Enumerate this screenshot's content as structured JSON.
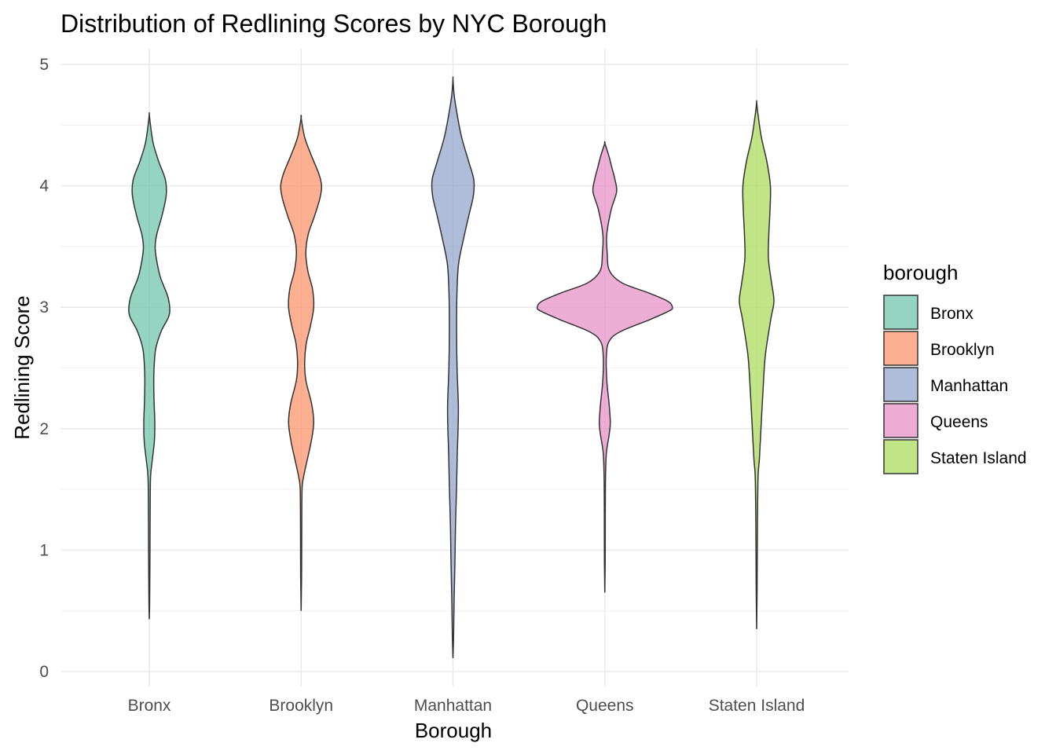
{
  "chart_data": {
    "type": "violin",
    "title": "Distribution of Redlining Scores by NYC Borough",
    "xlabel": "Borough",
    "ylabel": "Redlining Score",
    "ylim": [
      0,
      5
    ],
    "yticks": [
      0,
      1,
      2,
      3,
      4,
      5
    ],
    "grid": true,
    "categories": [
      "Bronx",
      "Brooklyn",
      "Manhattan",
      "Queens",
      "Staten Island"
    ],
    "legend": {
      "title": "borough",
      "position": "right",
      "entries": [
        "Bronx",
        "Brooklyn",
        "Manhattan",
        "Queens",
        "Staten Island"
      ]
    },
    "colors": {
      "Bronx": "#66c2a5",
      "Brooklyn": "#fc8d62",
      "Manhattan": "#8da0cb",
      "Queens": "#e78ac3",
      "Staten Island": "#a6d854"
    },
    "series": [
      {
        "name": "Bronx",
        "density_profile": [
          [
            0.43,
            0.0
          ],
          [
            0.55,
            0.4
          ],
          [
            0.8,
            0.7
          ],
          [
            1.0,
            0.9
          ],
          [
            1.3,
            1.1
          ],
          [
            1.6,
            1.6
          ],
          [
            1.75,
            4.0
          ],
          [
            1.9,
            6.5
          ],
          [
            2.05,
            7.0
          ],
          [
            2.25,
            6.0
          ],
          [
            2.45,
            5.8
          ],
          [
            2.65,
            8.0
          ],
          [
            2.8,
            15.0
          ],
          [
            2.92,
            24.5
          ],
          [
            3.0,
            26.0
          ],
          [
            3.1,
            23.0
          ],
          [
            3.25,
            14.0
          ],
          [
            3.4,
            9.0
          ],
          [
            3.5,
            7.5
          ],
          [
            3.6,
            9.5
          ],
          [
            3.75,
            16.0
          ],
          [
            3.92,
            21.5
          ],
          [
            4.05,
            20.5
          ],
          [
            4.2,
            12.0
          ],
          [
            4.35,
            5.0
          ],
          [
            4.5,
            1.5
          ],
          [
            4.59,
            0.0
          ]
        ]
      },
      {
        "name": "Brooklyn",
        "density_profile": [
          [
            0.5,
            0.0
          ],
          [
            0.8,
            0.6
          ],
          [
            1.2,
            0.8
          ],
          [
            1.5,
            1.2
          ],
          [
            1.6,
            3.0
          ],
          [
            1.75,
            8.0
          ],
          [
            1.9,
            13.0
          ],
          [
            2.05,
            16.0
          ],
          [
            2.2,
            13.5
          ],
          [
            2.4,
            6.0
          ],
          [
            2.55,
            4.5
          ],
          [
            2.7,
            6.5
          ],
          [
            2.85,
            12.0
          ],
          [
            3.0,
            16.0
          ],
          [
            3.15,
            14.5
          ],
          [
            3.3,
            8.5
          ],
          [
            3.45,
            6.0
          ],
          [
            3.6,
            9.0
          ],
          [
            3.75,
            17.0
          ],
          [
            3.9,
            24.0
          ],
          [
            4.0,
            26.0
          ],
          [
            4.1,
            22.5
          ],
          [
            4.25,
            13.0
          ],
          [
            4.4,
            4.5
          ],
          [
            4.56,
            0.0
          ]
        ]
      },
      {
        "name": "Manhattan",
        "density_profile": [
          [
            0.11,
            0.0
          ],
          [
            0.3,
            0.8
          ],
          [
            0.6,
            1.5
          ],
          [
            0.9,
            2.5
          ],
          [
            1.2,
            3.2
          ],
          [
            1.5,
            4.5
          ],
          [
            1.8,
            5.5
          ],
          [
            2.0,
            6.5
          ],
          [
            2.2,
            6.8
          ],
          [
            2.5,
            5.2
          ],
          [
            2.8,
            4.6
          ],
          [
            3.1,
            5.0
          ],
          [
            3.35,
            7.0
          ],
          [
            3.55,
            13.0
          ],
          [
            3.75,
            20.0
          ],
          [
            3.92,
            26.0
          ],
          [
            4.05,
            26.5
          ],
          [
            4.2,
            20.0
          ],
          [
            4.4,
            11.0
          ],
          [
            4.6,
            5.0
          ],
          [
            4.75,
            1.5
          ],
          [
            4.88,
            0.0
          ]
        ]
      },
      {
        "name": "Queens",
        "density_profile": [
          [
            0.65,
            0.0
          ],
          [
            0.9,
            0.5
          ],
          [
            1.3,
            0.6
          ],
          [
            1.6,
            0.9
          ],
          [
            1.8,
            2.0
          ],
          [
            1.95,
            5.5
          ],
          [
            2.05,
            7.0
          ],
          [
            2.2,
            5.5
          ],
          [
            2.4,
            2.5
          ],
          [
            2.6,
            2.0
          ],
          [
            2.72,
            5.5
          ],
          [
            2.8,
            20.0
          ],
          [
            2.9,
            58.0
          ],
          [
            2.97,
            82.0
          ],
          [
            3.0,
            86.0
          ],
          [
            3.05,
            80.0
          ],
          [
            3.12,
            55.0
          ],
          [
            3.2,
            22.0
          ],
          [
            3.3,
            6.0
          ],
          [
            3.45,
            3.0
          ],
          [
            3.6,
            2.5
          ],
          [
            3.8,
            8.0
          ],
          [
            3.95,
            15.0
          ],
          [
            4.05,
            13.0
          ],
          [
            4.15,
            9.0
          ],
          [
            4.25,
            5.0
          ],
          [
            4.35,
            0.0
          ]
        ]
      },
      {
        "name": "Staten Island",
        "density_profile": [
          [
            0.35,
            0.0
          ],
          [
            0.7,
            0.6
          ],
          [
            1.2,
            1.0
          ],
          [
            1.6,
            1.8
          ],
          [
            1.75,
            3.5
          ],
          [
            2.0,
            5.5
          ],
          [
            2.3,
            8.0
          ],
          [
            2.6,
            11.0
          ],
          [
            2.9,
            18.0
          ],
          [
            3.05,
            22.0
          ],
          [
            3.2,
            19.0
          ],
          [
            3.4,
            15.0
          ],
          [
            3.6,
            15.5
          ],
          [
            3.8,
            17.0
          ],
          [
            4.0,
            17.5
          ],
          [
            4.2,
            13.0
          ],
          [
            4.4,
            6.0
          ],
          [
            4.6,
            1.5
          ],
          [
            4.69,
            0.0
          ]
        ]
      }
    ]
  }
}
